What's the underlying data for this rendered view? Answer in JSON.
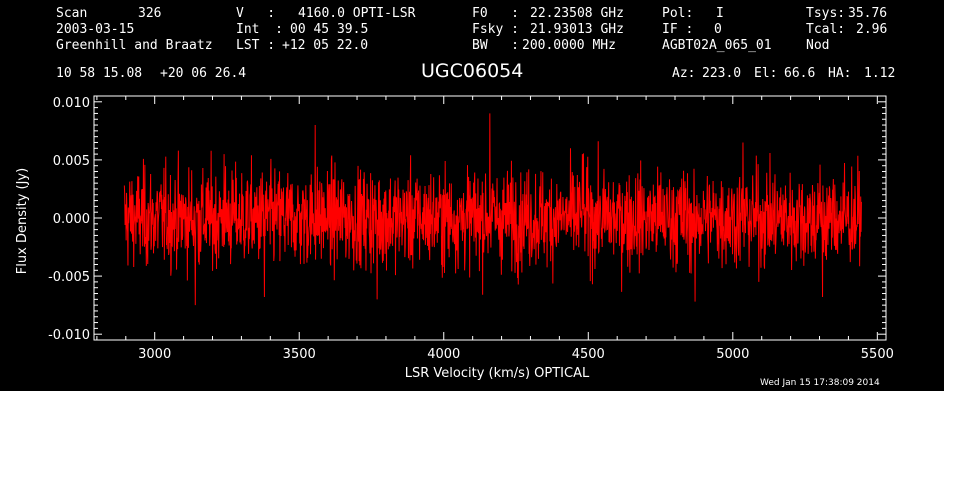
{
  "header": {
    "scan_label": "Scan",
    "scan_value": "326",
    "date": "2003-03-15",
    "observer": "Greenhill and Braatz",
    "v_label": "V   :",
    "v_value": "4160.0 OPTI-LSR",
    "int_label": "Int  :",
    "int_value": "00 45 39.5",
    "lst_label": "LST :",
    "lst_value": "+12 05 22.0",
    "f0_label": "F0   :",
    "f0_value": "22.23508 GHz",
    "fsky_label": "Fsky :",
    "fsky_value": "21.93013 GHz",
    "bw_label": "BW   :",
    "bw_value": "200.0000 MHz",
    "pol_label": "Pol:",
    "pol_value": "I",
    "if_label": "IF :",
    "if_value": "0",
    "project": "AGBT02A_065_01",
    "tsys_label": "Tsys:",
    "tsys_value": "35.76",
    "tcal_label": "Tcal:",
    "tcal_value": "2.96",
    "mode": "Nod",
    "ra": "10 58 15.08",
    "dec": "+20 06 26.4",
    "object": "UGC06054",
    "az_label": "Az:",
    "az_value": "223.0",
    "el_label": "El:",
    "el_value": "66.6",
    "ha_label": "HA:",
    "ha_value": "1.12"
  },
  "footer": {
    "timestamp": "Wed Jan 15 17:38:09 2014"
  },
  "colors": {
    "background": "#000000",
    "axes": "#ffffff",
    "series": "#ff0000"
  },
  "chart_data": {
    "type": "line",
    "xlabel": "LSR Velocity (km/s) OPTICAL",
    "ylabel": "Flux Density (Jy)",
    "xlim": [
      2790,
      5530
    ],
    "ylim": [
      -0.0105,
      0.0105
    ],
    "x_ticks": [
      3000,
      3500,
      4000,
      4500,
      5000,
      5500
    ],
    "x_tick_labels": [
      "3000",
      "3500",
      "4000",
      "4500",
      "5000",
      "5500"
    ],
    "y_ticks": [
      -0.01,
      -0.005,
      0.0,
      0.005,
      0.01
    ],
    "y_tick_labels": [
      "-0.010",
      "-0.005",
      "0.000",
      "0.005",
      "0.010"
    ],
    "grid": false,
    "series": [
      {
        "color": "#ff0000",
        "x_range": [
          2895,
          5445
        ],
        "points": 2048,
        "rms": 0.0021,
        "mean": 0.0,
        "peaks": [
          {
            "x": 3240,
            "y": 0.0055
          },
          {
            "x": 3555,
            "y": 0.008
          },
          {
            "x": 4160,
            "y": 0.009
          },
          {
            "x": 4480,
            "y": 0.0055
          },
          {
            "x": 5035,
            "y": 0.0065
          },
          {
            "x": 3140,
            "y": -0.0075
          },
          {
            "x": 3380,
            "y": -0.0068
          },
          {
            "x": 3770,
            "y": -0.007
          },
          {
            "x": 4870,
            "y": -0.0072
          },
          {
            "x": 5310,
            "y": -0.0068
          }
        ]
      }
    ]
  }
}
